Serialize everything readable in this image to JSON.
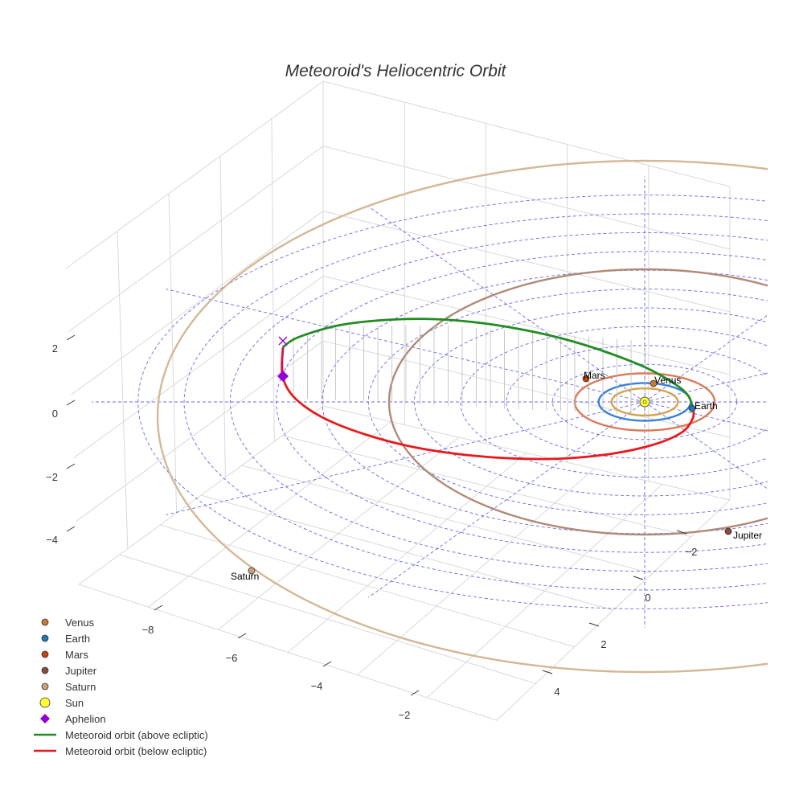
{
  "chart_data": {
    "type": "scatter",
    "dimensions": "3d",
    "title": "Meteoroid's Heliocentric Orbit",
    "xlabel": "",
    "ylabel": "",
    "zlabel": "",
    "axis_ticks": {
      "x": [
        -8,
        -6,
        -4,
        -2
      ],
      "y": [
        -2,
        0,
        2,
        4
      ],
      "z": [
        2,
        0,
        -2,
        -4
      ]
    },
    "tick_labels": {
      "x": [
        "−8",
        "−6",
        "−4",
        "−2"
      ],
      "y": [
        "−2",
        "0",
        "2",
        "4"
      ],
      "z": [
        "2",
        "0",
        "−2",
        "−4"
      ]
    },
    "grid": true,
    "legend_position": "bottom-left",
    "planets": [
      {
        "name": "Venus",
        "label": "Venus",
        "color": "#c87a2e",
        "orbit_color": "#d4a24c",
        "orbit_radius_au": 0.72
      },
      {
        "name": "Earth",
        "label": "Earth",
        "color": "#1f77b4",
        "orbit_color": "#3a7fd6",
        "orbit_radius_au": 1.0
      },
      {
        "name": "Mars",
        "label": "Mars",
        "color": "#c1440e",
        "orbit_color": "#d87a5a",
        "orbit_radius_au": 1.52
      },
      {
        "name": "Jupiter",
        "label": "Jupiter",
        "color": "#8b4a3c",
        "orbit_color": "#b08a78",
        "orbit_radius_au": 5.2
      },
      {
        "name": "Saturn",
        "label": "Saturn",
        "color": "#c8a27a",
        "orbit_color": "#d3b896",
        "orbit_radius_au": 9.5
      }
    ],
    "sun": {
      "name": "Sun",
      "color": "#ffff33"
    },
    "aphelion": {
      "name": "Aphelion",
      "color": "#9400d3",
      "marker": "diamond"
    },
    "meteoroid_orbit": {
      "above": {
        "name": "Meteoroid orbit (above ecliptic)",
        "color": "#228b22"
      },
      "below": {
        "name": "Meteoroid orbit (below ecliptic)",
        "color": "#e8191c"
      }
    },
    "ecliptic_grid_color": "#4444dd",
    "legend": [
      {
        "label": "Venus",
        "kind": "dot",
        "color": "#c87a2e"
      },
      {
        "label": "Earth",
        "kind": "dot",
        "color": "#1f77b4"
      },
      {
        "label": "Mars",
        "kind": "dot",
        "color": "#c1440e"
      },
      {
        "label": "Jupiter",
        "kind": "dot",
        "color": "#8b4a3c"
      },
      {
        "label": "Saturn",
        "kind": "dot",
        "color": "#c8a27a"
      },
      {
        "label": "Sun",
        "kind": "sun",
        "color": "#ffff33"
      },
      {
        "label": "Aphelion",
        "kind": "diamond",
        "color": "#9400d3"
      },
      {
        "label": "Meteoroid orbit (above ecliptic)",
        "kind": "line",
        "color": "#228b22"
      },
      {
        "label": "Meteoroid orbit (below ecliptic)",
        "kind": "line",
        "color": "#e8191c"
      }
    ]
  }
}
